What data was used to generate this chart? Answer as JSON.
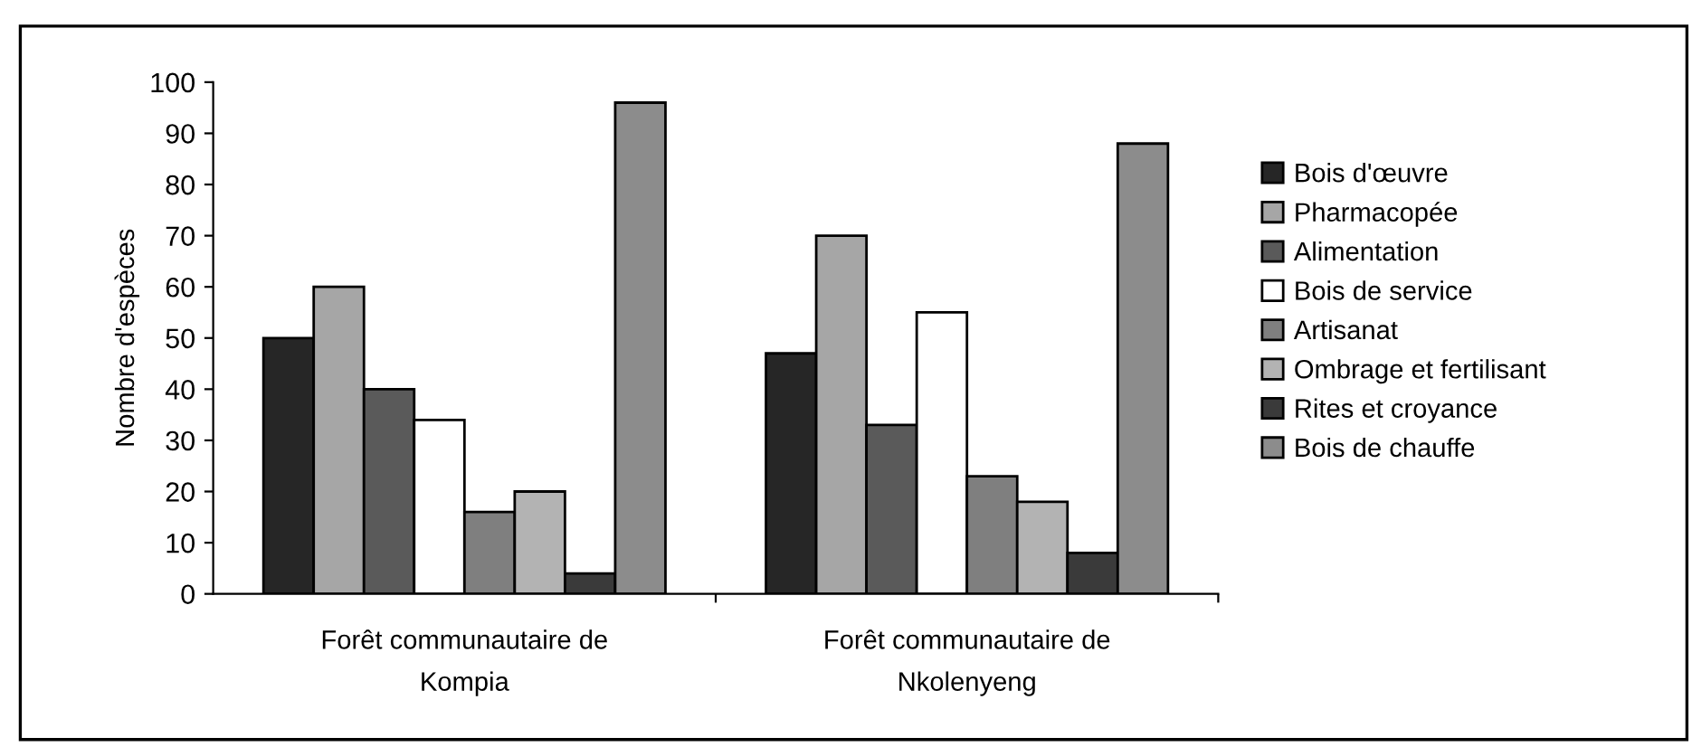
{
  "chart_data": {
    "type": "bar",
    "ylabel": "Nombre d'espèces",
    "categories": [
      "Forêt communautaire de Kompia",
      "Forêt communautaire de Nkolenyeng"
    ],
    "series": [
      {
        "name": "Bois d'œuvre",
        "color": "#262626",
        "values": [
          50,
          47
        ]
      },
      {
        "name": "Pharmacopée",
        "color": "#a6a6a6",
        "values": [
          60,
          70
        ]
      },
      {
        "name": "Alimentation",
        "color": "#5a5a5a",
        "values": [
          40,
          33
        ]
      },
      {
        "name": "Bois de service",
        "color": "#ffffff",
        "values": [
          34,
          55
        ]
      },
      {
        "name": "Artisanat",
        "color": "#7f7f7f",
        "values": [
          16,
          23
        ]
      },
      {
        "name": "Ombrage et fertilisant",
        "color": "#b3b3b3",
        "values": [
          20,
          18
        ]
      },
      {
        "name": "Rites et croyance",
        "color": "#3a3a3a",
        "values": [
          4,
          8
        ]
      },
      {
        "name": "Bois de chauffe",
        "color": "#8c8c8c",
        "values": [
          96,
          88
        ]
      }
    ],
    "ylim": [
      0,
      100
    ],
    "yticks": [
      0,
      10,
      20,
      30,
      40,
      50,
      60,
      70,
      80,
      90,
      100
    ],
    "grid": false,
    "legend": "right"
  }
}
